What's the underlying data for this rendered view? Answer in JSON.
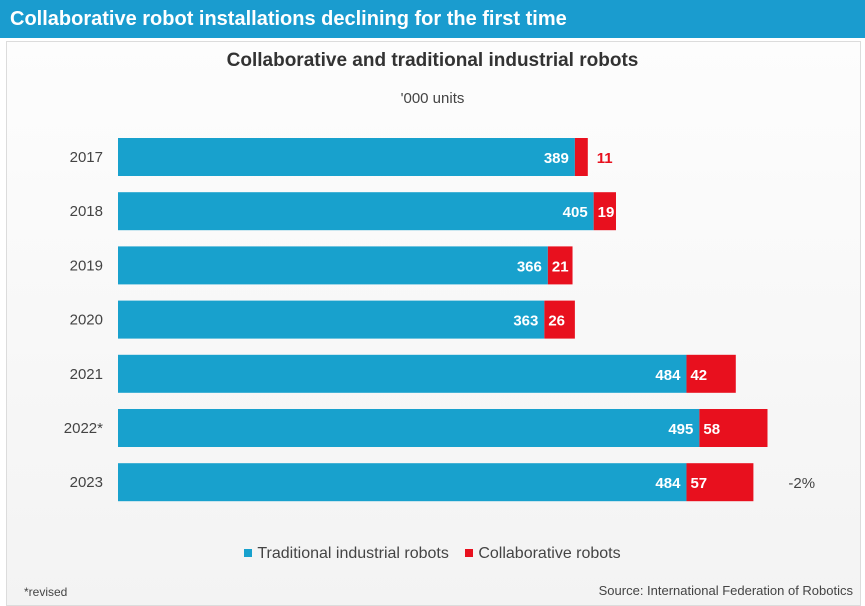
{
  "banner": {
    "title": "Collaborative robot installations declining for the first time"
  },
  "colors": {
    "banner": "#1a9ccf",
    "traditional": "#18a1cd",
    "collaborative": "#e8101e"
  },
  "chart_data": {
    "type": "bar",
    "orientation": "horizontal",
    "stacked": true,
    "title": "Collaborative and traditional industrial robots",
    "subtitle": "'000 units",
    "categories": [
      "2017",
      "2018",
      "2019",
      "2020",
      "2021",
      "2022*",
      "2023"
    ],
    "series": [
      {
        "name": "Traditional industrial robots",
        "values": [
          389,
          405,
          366,
          363,
          484,
          495,
          484
        ]
      },
      {
        "name": "Collaborative robots",
        "values": [
          11,
          19,
          21,
          26,
          42,
          58,
          57
        ]
      }
    ],
    "annotations": [
      {
        "category": "2023",
        "text": "-2%"
      }
    ],
    "xlim": [
      0,
      560
    ],
    "grid": false,
    "legend": "bottom-center"
  },
  "legend": {
    "traditional": "Traditional industrial robots",
    "collaborative": "Collaborative robots"
  },
  "footer": {
    "note": "*revised",
    "source": "Source: International Federation of Robotics"
  }
}
